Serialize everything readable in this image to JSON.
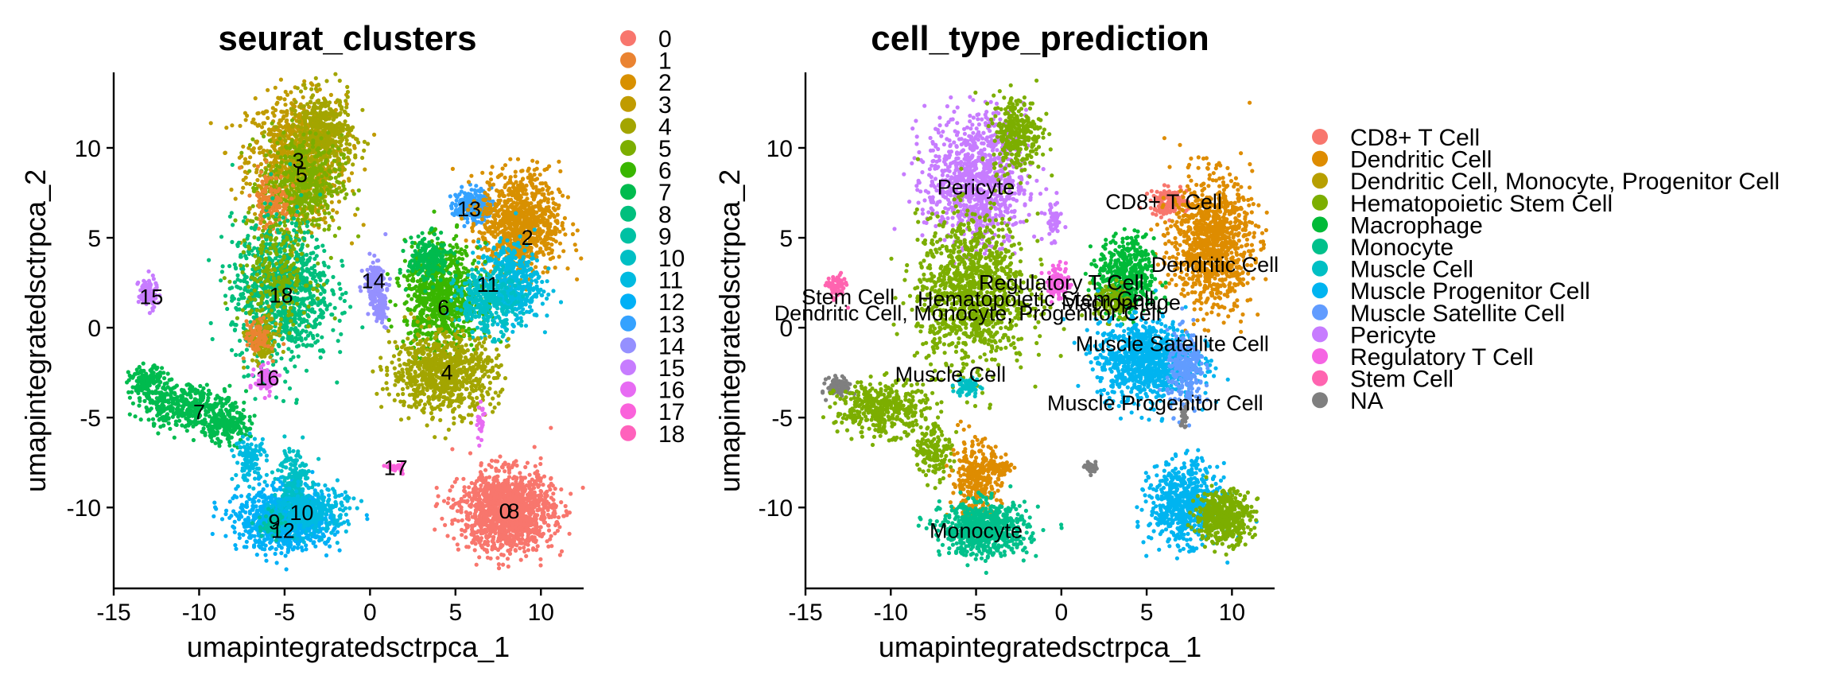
{
  "chart_data": [
    {
      "type": "scatter",
      "title": "seurat_clusters",
      "xlabel": "umapintegratedsctrpca_1",
      "ylabel": "umapintegratedsctrpca_2",
      "xlim": [
        -15,
        12.5
      ],
      "ylim": [
        -14.5,
        14.2
      ],
      "xticks": [
        "-15",
        "-10",
        "-5",
        "0",
        "5",
        "10"
      ],
      "yticks": [
        "-10",
        "-5",
        "0",
        "5",
        "10"
      ],
      "grid": false,
      "legend_position": "right",
      "legend": [
        {
          "label": "0",
          "color": "#F8766D"
        },
        {
          "label": "1",
          "color": "#EA8331"
        },
        {
          "label": "2",
          "color": "#D89000"
        },
        {
          "label": "3",
          "color": "#C09B00"
        },
        {
          "label": "4",
          "color": "#A3A500"
        },
        {
          "label": "5",
          "color": "#7CAE00"
        },
        {
          "label": "6",
          "color": "#39B600"
        },
        {
          "label": "7",
          "color": "#00BB4E"
        },
        {
          "label": "8",
          "color": "#00BF7D"
        },
        {
          "label": "9",
          "color": "#00C1A3"
        },
        {
          "label": "10",
          "color": "#00BFC4"
        },
        {
          "label": "11",
          "color": "#00BAE0"
        },
        {
          "label": "12",
          "color": "#00B0F6"
        },
        {
          "label": "13",
          "color": "#35A2FF"
        },
        {
          "label": "14",
          "color": "#9590FF"
        },
        {
          "label": "15",
          "color": "#C77CFF"
        },
        {
          "label": "16",
          "color": "#E76BF3"
        },
        {
          "label": "17",
          "color": "#FA62DB"
        },
        {
          "label": "18",
          "color": "#FF62BC"
        }
      ],
      "cluster_labels": [
        {
          "text": "3",
          "x": -4.2,
          "y": 9.3
        },
        {
          "text": "5",
          "x": -4.0,
          "y": 8.5
        },
        {
          "text": "13",
          "x": 5.8,
          "y": 6.6
        },
        {
          "text": "2",
          "x": 9.2,
          "y": 5.0
        },
        {
          "text": "14",
          "x": 0.2,
          "y": 2.6
        },
        {
          "text": "11",
          "x": 6.9,
          "y": 2.4
        },
        {
          "text": "18",
          "x": -5.2,
          "y": 1.8
        },
        {
          "text": "15",
          "x": -12.8,
          "y": 1.7
        },
        {
          "text": "6",
          "x": 4.3,
          "y": 1.1
        },
        {
          "text": "4",
          "x": 4.5,
          "y": -2.5
        },
        {
          "text": "16",
          "x": -6.0,
          "y": -2.8
        },
        {
          "text": "7",
          "x": -10.0,
          "y": -4.7
        },
        {
          "text": "17",
          "x": 1.5,
          "y": -7.8
        },
        {
          "text": "10",
          "x": -4.0,
          "y": -10.3
        },
        {
          "text": "0",
          "x": 7.9,
          "y": -10.2
        },
        {
          "text": "8",
          "x": 8.4,
          "y": -10.2
        },
        {
          "text": "9",
          "x": -5.6,
          "y": -10.8
        },
        {
          "text": "12",
          "x": -5.1,
          "y": -11.3
        }
      ],
      "clusters": [
        {
          "c": 3,
          "cx": -4.3,
          "cy": 9.3,
          "sx": 1.6,
          "sy": 2.0,
          "n": 900
        },
        {
          "c": 4,
          "cx": -2.8,
          "cy": 10.7,
          "sx": 1.0,
          "sy": 1.3,
          "n": 450
        },
        {
          "c": 5,
          "cx": -4.0,
          "cy": 8.0,
          "sx": 1.3,
          "sy": 1.5,
          "n": 450
        },
        {
          "c": 1,
          "cx": -5.8,
          "cy": 7.0,
          "sx": 0.6,
          "sy": 1.0,
          "n": 120
        },
        {
          "c": 8,
          "cx": -5.2,
          "cy": 2.0,
          "sx": 1.6,
          "sy": 2.2,
          "n": 950
        },
        {
          "c": 5,
          "cx": -5.5,
          "cy": 3.0,
          "sx": 1.2,
          "sy": 1.6,
          "n": 250
        },
        {
          "c": 4,
          "cx": -6.3,
          "cy": -0.8,
          "sx": 0.5,
          "sy": 0.8,
          "n": 120
        },
        {
          "c": 1,
          "cx": -6.6,
          "cy": -0.5,
          "sx": 0.4,
          "sy": 0.5,
          "n": 80
        },
        {
          "c": 16,
          "cx": -6.0,
          "cy": -2.9,
          "sx": 0.4,
          "sy": 0.4,
          "n": 80
        },
        {
          "c": 15,
          "cx": -13.0,
          "cy": 1.9,
          "sx": 0.3,
          "sy": 0.5,
          "n": 90
        },
        {
          "c": 7,
          "cx": -13.0,
          "cy": -3.1,
          "sx": 0.6,
          "sy": 0.5,
          "n": 160
        },
        {
          "c": 7,
          "cx": -10.6,
          "cy": -4.4,
          "sx": 1.5,
          "sy": 0.7,
          "n": 380
        },
        {
          "c": 7,
          "cx": -8.5,
          "cy": -5.5,
          "sx": 0.8,
          "sy": 0.5,
          "n": 180
        },
        {
          "c": 11,
          "cx": -7.0,
          "cy": -7.3,
          "sx": 0.5,
          "sy": 0.7,
          "n": 120
        },
        {
          "c": 12,
          "cx": -5.0,
          "cy": -10.7,
          "sx": 1.5,
          "sy": 0.9,
          "n": 1000
        },
        {
          "c": 10,
          "cx": -4.5,
          "cy": -8.6,
          "sx": 0.5,
          "sy": 1.2,
          "n": 200
        },
        {
          "c": 11,
          "cx": -3.5,
          "cy": -10.2,
          "sx": 1.2,
          "sy": 0.7,
          "n": 300
        },
        {
          "c": 9,
          "cx": -5.8,
          "cy": -11.0,
          "sx": 0.4,
          "sy": 0.4,
          "n": 60
        },
        {
          "c": 14,
          "cx": 0.3,
          "cy": 2.5,
          "sx": 0.35,
          "sy": 0.7,
          "n": 150
        },
        {
          "c": 14,
          "cx": 0.6,
          "cy": 1.0,
          "sx": 0.25,
          "sy": 0.5,
          "n": 60
        },
        {
          "c": 13,
          "cx": 6.0,
          "cy": 6.8,
          "sx": 0.6,
          "sy": 0.5,
          "n": 200
        },
        {
          "c": 2,
          "cx": 8.8,
          "cy": 5.8,
          "sx": 1.3,
          "sy": 1.6,
          "n": 900
        },
        {
          "c": 11,
          "cx": 8.2,
          "cy": 2.5,
          "sx": 1.0,
          "sy": 1.2,
          "n": 450
        },
        {
          "c": 6,
          "cx": 4.2,
          "cy": 1.7,
          "sx": 1.2,
          "sy": 1.6,
          "n": 800
        },
        {
          "c": 7,
          "cx": 3.5,
          "cy": 3.8,
          "sx": 0.7,
          "sy": 0.7,
          "n": 200
        },
        {
          "c": 10,
          "cx": 6.8,
          "cy": 1.4,
          "sx": 1.0,
          "sy": 1.0,
          "n": 300
        },
        {
          "c": 4,
          "cx": 4.3,
          "cy": -2.5,
          "sx": 1.7,
          "sy": 1.2,
          "n": 850
        },
        {
          "c": 16,
          "cx": 6.5,
          "cy": -5.3,
          "sx": 0.15,
          "sy": 0.5,
          "n": 25
        },
        {
          "c": 17,
          "cx": 1.5,
          "cy": -7.8,
          "sx": 0.25,
          "sy": 0.15,
          "n": 25
        },
        {
          "c": 0,
          "cx": 8.0,
          "cy": -10.2,
          "sx": 1.5,
          "sy": 1.2,
          "n": 1400
        }
      ]
    },
    {
      "type": "scatter",
      "title": "cell_type_prediction",
      "xlabel": "umapintegratedsctrpca_1",
      "ylabel": "umapintegratedsctrpca_2",
      "xlim": [
        -15,
        12.5
      ],
      "ylim": [
        -14.5,
        14.2
      ],
      "xticks": [
        "-15",
        "-10",
        "-5",
        "0",
        "5",
        "10"
      ],
      "yticks": [
        "-10",
        "-5",
        "0",
        "5",
        "10"
      ],
      "grid": false,
      "legend_position": "right",
      "legend": [
        {
          "label": "CD8+ T Cell",
          "color": "#F8766D"
        },
        {
          "label": "Dendritic Cell",
          "color": "#DE8C00"
        },
        {
          "label": "Dendritic Cell, Monocyte, Progenitor Cell",
          "color": "#B79F00"
        },
        {
          "label": "Hematopoietic Stem Cell",
          "color": "#7CAE00"
        },
        {
          "label": "Macrophage",
          "color": "#00BA38"
        },
        {
          "label": "Monocyte",
          "color": "#00C08B"
        },
        {
          "label": "Muscle Cell",
          "color": "#00BFC4"
        },
        {
          "label": "Muscle Progenitor Cell",
          "color": "#00B4F0"
        },
        {
          "label": "Muscle Satellite Cell",
          "color": "#619CFF"
        },
        {
          "label": "Pericyte",
          "color": "#C77CFF"
        },
        {
          "label": "Regulatory T Cell",
          "color": "#F564E3"
        },
        {
          "label": "Stem Cell",
          "color": "#FF64B0"
        },
        {
          "label": "NA",
          "color": "#7F7F7F"
        }
      ],
      "cluster_labels": [
        {
          "text": "Pericyte",
          "x": -5.0,
          "y": 7.8
        },
        {
          "text": "CD8+ T Cell",
          "x": 6.0,
          "y": 7.0
        },
        {
          "text": "Dendritic Cell",
          "x": 9.0,
          "y": 3.5
        },
        {
          "text": "Regulatory T Cell",
          "x": 0.0,
          "y": 2.5
        },
        {
          "text": "Stem Cell",
          "x": -12.5,
          "y": 1.7
        },
        {
          "text": "Hematopoietic Stem Cell",
          "x": -1.5,
          "y": 1.6
        },
        {
          "text": "Macrophage",
          "x": 3.5,
          "y": 1.4
        },
        {
          "text": "Dendritic Cell, Monocyte, Progenitor Cell",
          "x": -5.5,
          "y": 0.8
        },
        {
          "text": "Muscle Satellite Cell",
          "x": 6.5,
          "y": -0.9
        },
        {
          "text": "Muscle Cell",
          "x": -6.5,
          "y": -2.6
        },
        {
          "text": "Muscle Progenitor Cell",
          "x": 5.5,
          "y": -4.2
        },
        {
          "text": "Monocyte",
          "x": -5.0,
          "y": -11.3
        }
      ],
      "clusters": [
        {
          "c": 9,
          "cx": -5.0,
          "cy": 8.2,
          "sx": 1.6,
          "sy": 2.0,
          "n": 950
        },
        {
          "c": 3,
          "cx": -2.6,
          "cy": 10.8,
          "sx": 0.8,
          "sy": 1.2,
          "n": 300
        },
        {
          "c": 3,
          "cx": -5.2,
          "cy": 2.0,
          "sx": 1.8,
          "sy": 2.3,
          "n": 1100
        },
        {
          "c": 9,
          "cx": -0.5,
          "cy": 6.0,
          "sx": 0.3,
          "sy": 0.6,
          "n": 50
        },
        {
          "c": 11,
          "cx": -13.2,
          "cy": 2.2,
          "sx": 0.3,
          "sy": 0.4,
          "n": 80
        },
        {
          "c": 12,
          "cx": -13.0,
          "cy": -3.3,
          "sx": 0.4,
          "sy": 0.3,
          "n": 90
        },
        {
          "c": 3,
          "cx": -10.5,
          "cy": -4.5,
          "sx": 1.5,
          "sy": 0.8,
          "n": 400
        },
        {
          "c": 3,
          "cx": -7.5,
          "cy": -6.8,
          "sx": 0.6,
          "sy": 0.8,
          "n": 150
        },
        {
          "c": 6,
          "cx": -5.5,
          "cy": -3.3,
          "sx": 0.4,
          "sy": 0.3,
          "n": 60
        },
        {
          "c": 1,
          "cx": -5.0,
          "cy": -8.5,
          "sx": 0.8,
          "sy": 1.2,
          "n": 350
        },
        {
          "c": 1,
          "cx": -3.5,
          "cy": -7.8,
          "sx": 0.5,
          "sy": 0.2,
          "n": 60
        },
        {
          "c": 5,
          "cx": -4.5,
          "cy": -11.2,
          "sx": 1.4,
          "sy": 0.8,
          "n": 700
        },
        {
          "c": 10,
          "cx": -0.2,
          "cy": 2.5,
          "sx": 0.35,
          "sy": 0.5,
          "n": 100
        },
        {
          "c": 12,
          "cx": 1.8,
          "cy": -7.8,
          "sx": 0.25,
          "sy": 0.15,
          "n": 30
        },
        {
          "c": 0,
          "cx": 6.3,
          "cy": 7.0,
          "sx": 0.6,
          "sy": 0.4,
          "n": 150
        },
        {
          "c": 1,
          "cx": 8.8,
          "cy": 4.8,
          "sx": 1.3,
          "sy": 2.0,
          "n": 1000
        },
        {
          "c": 4,
          "cx": 3.8,
          "cy": 2.8,
          "sx": 0.9,
          "sy": 1.2,
          "n": 500
        },
        {
          "c": 3,
          "cx": 3.0,
          "cy": 1.5,
          "sx": 0.6,
          "sy": 0.6,
          "n": 120
        },
        {
          "c": 7,
          "cx": 5.0,
          "cy": -1.8,
          "sx": 1.6,
          "sy": 1.2,
          "n": 950
        },
        {
          "c": 8,
          "cx": 7.3,
          "cy": -2.5,
          "sx": 0.6,
          "sy": 1.2,
          "n": 250
        },
        {
          "c": 12,
          "cx": 7.2,
          "cy": -4.9,
          "sx": 0.15,
          "sy": 0.4,
          "n": 25
        },
        {
          "c": 7,
          "cx": 7.2,
          "cy": -9.8,
          "sx": 1.1,
          "sy": 1.2,
          "n": 650
        },
        {
          "c": 3,
          "cx": 9.5,
          "cy": -10.5,
          "sx": 0.9,
          "sy": 0.8,
          "n": 500
        }
      ]
    }
  ]
}
